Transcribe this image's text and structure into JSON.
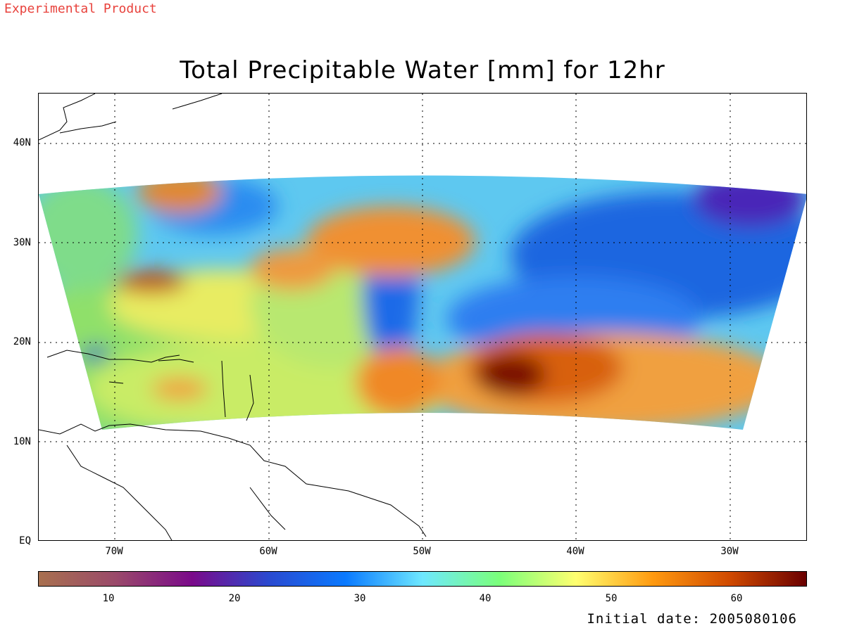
{
  "header": {
    "experimental": "Experimental Product",
    "title": "Total Precipitable Water [mm] for 12hr"
  },
  "map": {
    "lat_labels": [
      "40N",
      "30N",
      "20N",
      "10N",
      "EQ"
    ],
    "lon_labels": [
      "70W",
      "60W",
      "50W",
      "40W",
      "30W"
    ],
    "lon_range": [
      "75W",
      "25W"
    ],
    "lat_range": [
      "EQ",
      "45N"
    ],
    "grid": true
  },
  "colorbar": {
    "labels": [
      "10",
      "20",
      "30",
      "40",
      "50",
      "60"
    ],
    "colors": [
      "#a8704f",
      "#9a4a6a",
      "#7a0a8a",
      "#2a4ad0",
      "#0a7aff",
      "#6ee8ff",
      "#7aff7a",
      "#ffff70",
      "#ff9a10",
      "#d04a00",
      "#6a0000"
    ]
  },
  "footer": {
    "initial_date": "Initial date: 2005080106"
  }
}
